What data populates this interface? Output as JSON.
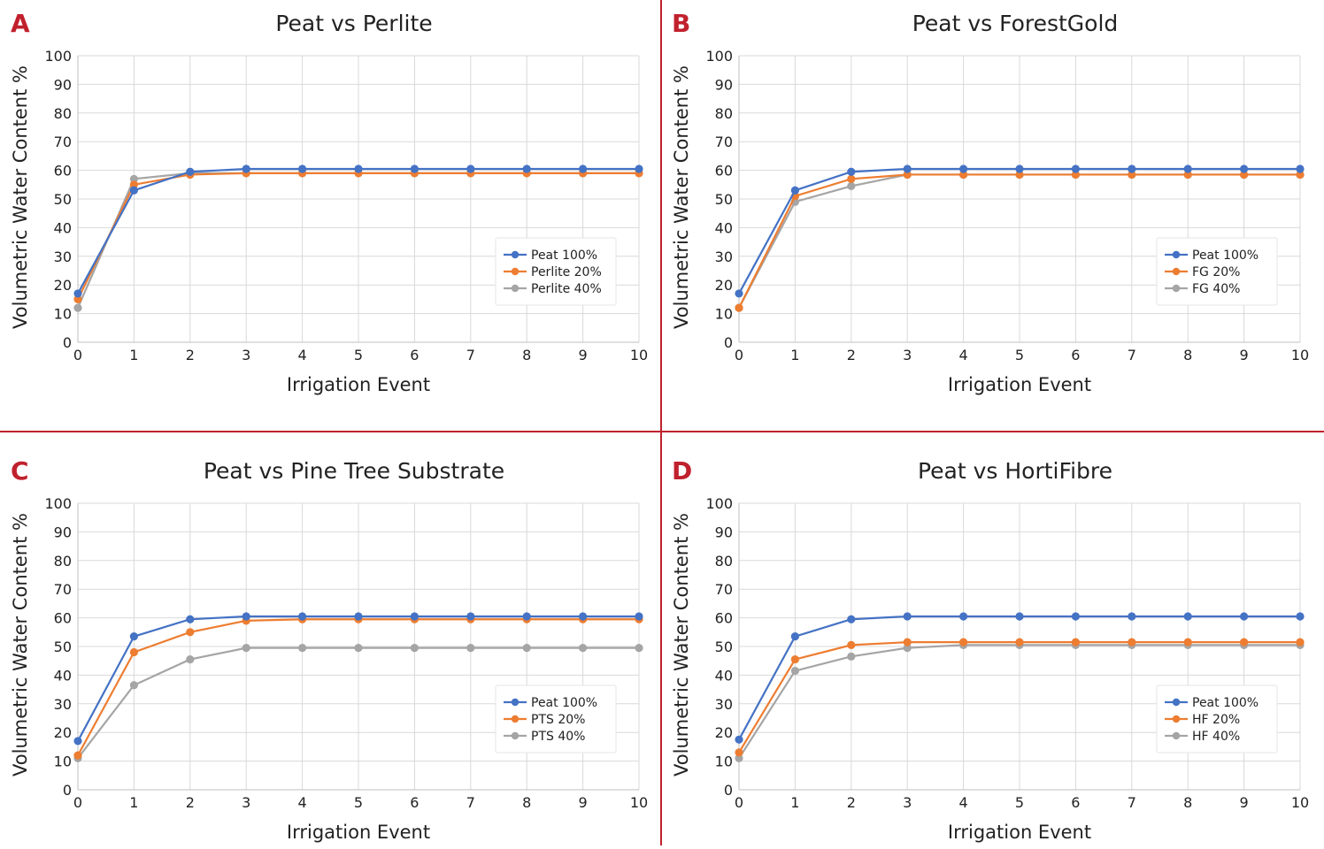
{
  "colors": {
    "peat": "#4472c4",
    "mix20": "#ed7d31",
    "mix40": "#a5a5a5",
    "panel_letter": "#c0212d",
    "divider": "#c0212d",
    "grid": "#d9d9d9"
  },
  "chart_data": [
    {
      "panel": "A",
      "type": "line",
      "title": "Peat vs Perlite",
      "xlabel": "Irrigation Event",
      "ylabel": "Volumetric Water Content %",
      "xlim": [
        0,
        10
      ],
      "ylim": [
        0,
        100
      ],
      "xticks": [
        "0",
        "1",
        "2",
        "3",
        "4",
        "5",
        "6",
        "7",
        "8",
        "9",
        "10"
      ],
      "yticks": [
        "0",
        "10",
        "20",
        "30",
        "40",
        "50",
        "60",
        "70",
        "80",
        "90",
        "100"
      ],
      "grid": true,
      "legend_position": "center-right",
      "x": [
        0,
        1,
        2,
        3,
        4,
        5,
        6,
        7,
        8,
        9,
        10
      ],
      "series": [
        {
          "name": "Peat 100%",
          "color_key": "peat",
          "values": [
            17,
            53,
            59.5,
            60.5,
            60.5,
            60.5,
            60.5,
            60.5,
            60.5,
            60.5,
            60.5
          ]
        },
        {
          "name": "Perlite 20%",
          "color_key": "mix20",
          "values": [
            15,
            55,
            58.5,
            59,
            59,
            59,
            59,
            59,
            59,
            59,
            59
          ]
        },
        {
          "name": "Perlite 40%",
          "color_key": "mix40",
          "values": [
            12,
            57,
            59,
            59,
            59,
            59,
            59,
            59,
            59,
            59,
            59
          ]
        }
      ]
    },
    {
      "panel": "B",
      "type": "line",
      "title": "Peat vs ForestGold",
      "xlabel": "Irrigation Event",
      "ylabel": "Volumetric Water Content %",
      "xlim": [
        0,
        10
      ],
      "ylim": [
        0,
        100
      ],
      "xticks": [
        "0",
        "1",
        "2",
        "3",
        "4",
        "5",
        "6",
        "7",
        "8",
        "9",
        "10"
      ],
      "yticks": [
        "0",
        "10",
        "20",
        "30",
        "40",
        "50",
        "60",
        "70",
        "80",
        "90",
        "100"
      ],
      "grid": true,
      "legend_position": "center-right",
      "x": [
        0,
        1,
        2,
        3,
        4,
        5,
        6,
        7,
        8,
        9,
        10
      ],
      "series": [
        {
          "name": "Peat 100%",
          "color_key": "peat",
          "values": [
            17,
            53,
            59.5,
            60.5,
            60.5,
            60.5,
            60.5,
            60.5,
            60.5,
            60.5,
            60.5
          ]
        },
        {
          "name": "FG 20%",
          "color_key": "mix20",
          "values": [
            12,
            51,
            57,
            58.5,
            58.5,
            58.5,
            58.5,
            58.5,
            58.5,
            58.5,
            58.5
          ]
        },
        {
          "name": "FG 40%",
          "color_key": "mix40",
          "values": [
            12,
            49,
            54.5,
            58.5,
            58.5,
            58.5,
            58.5,
            58.5,
            58.5,
            58.5,
            58.5
          ]
        }
      ]
    },
    {
      "panel": "C",
      "type": "line",
      "title": "Peat vs Pine Tree Substrate",
      "xlabel": "Irrigation Event",
      "ylabel": "Volumetric Water Content %",
      "xlim": [
        0,
        10
      ],
      "ylim": [
        0,
        100
      ],
      "xticks": [
        "0",
        "1",
        "2",
        "3",
        "4",
        "5",
        "6",
        "7",
        "8",
        "9",
        "10"
      ],
      "yticks": [
        "0",
        "10",
        "20",
        "30",
        "40",
        "50",
        "60",
        "70",
        "80",
        "90",
        "100"
      ],
      "grid": true,
      "legend_position": "center-right",
      "x": [
        0,
        1,
        2,
        3,
        4,
        5,
        6,
        7,
        8,
        9,
        10
      ],
      "series": [
        {
          "name": "Peat 100%",
          "color_key": "peat",
          "values": [
            17,
            53.5,
            59.5,
            60.5,
            60.5,
            60.5,
            60.5,
            60.5,
            60.5,
            60.5,
            60.5
          ]
        },
        {
          "name": "PTS 20%",
          "color_key": "mix20",
          "values": [
            12,
            48,
            55,
            59,
            59.5,
            59.5,
            59.5,
            59.5,
            59.5,
            59.5,
            59.5
          ]
        },
        {
          "name": "PTS 40%",
          "color_key": "mix40",
          "values": [
            11,
            36.5,
            45.5,
            49.5,
            49.5,
            49.5,
            49.5,
            49.5,
            49.5,
            49.5,
            49.5
          ]
        }
      ]
    },
    {
      "panel": "D",
      "type": "line",
      "title": "Peat vs HortiFibre",
      "xlabel": "Irrigation Event",
      "ylabel": "Volumetric Water Content %",
      "xlim": [
        0,
        10
      ],
      "ylim": [
        0,
        100
      ],
      "xticks": [
        "0",
        "1",
        "2",
        "3",
        "4",
        "5",
        "6",
        "7",
        "8",
        "9",
        "10"
      ],
      "yticks": [
        "0",
        "10",
        "20",
        "30",
        "40",
        "50",
        "60",
        "70",
        "80",
        "90",
        "100"
      ],
      "grid": true,
      "legend_position": "center-right",
      "x": [
        0,
        1,
        2,
        3,
        4,
        5,
        6,
        7,
        8,
        9,
        10
      ],
      "series": [
        {
          "name": "Peat 100%",
          "color_key": "peat",
          "values": [
            17.5,
            53.5,
            59.5,
            60.5,
            60.5,
            60.5,
            60.5,
            60.5,
            60.5,
            60.5,
            60.5
          ]
        },
        {
          "name": "HF 20%",
          "color_key": "mix20",
          "values": [
            13,
            45.5,
            50.5,
            51.5,
            51.5,
            51.5,
            51.5,
            51.5,
            51.5,
            51.5,
            51.5
          ]
        },
        {
          "name": "HF 40%",
          "color_key": "mix40",
          "values": [
            11,
            41.5,
            46.5,
            49.5,
            50.5,
            50.5,
            50.5,
            50.5,
            50.5,
            50.5,
            50.5
          ]
        }
      ]
    }
  ]
}
